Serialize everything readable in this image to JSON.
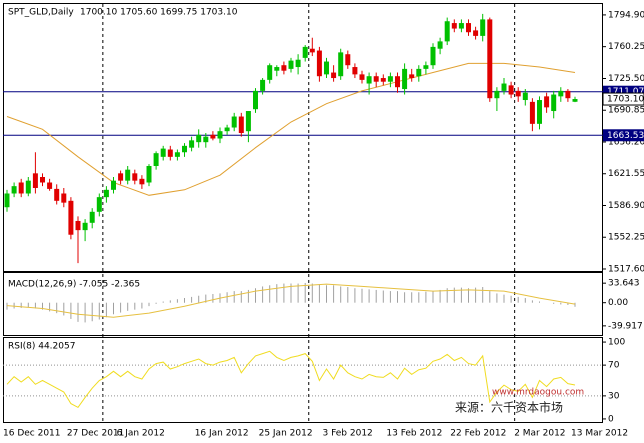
{
  "chart_data": [
    {
      "type": "candlestick",
      "title": "SPT_GLD,Daily",
      "header_ohlc": "1700.10 1705.60 1699.75 1703.10",
      "categories": [
        "16 Dec 2011",
        null,
        null,
        null,
        null,
        null,
        null,
        null,
        null,
        "27 Dec 2011",
        null,
        null,
        null,
        null,
        null,
        null,
        "6 Jan 2012",
        null,
        null,
        null,
        null,
        null,
        null,
        null,
        null,
        null,
        null,
        "16 Jan 2012",
        null,
        null,
        null,
        null,
        null,
        null,
        null,
        null,
        "25 Jan 2012",
        null,
        null,
        null,
        null,
        null,
        null,
        null,
        null,
        "3 Feb 2012",
        null,
        null,
        null,
        null,
        null,
        null,
        null,
        null,
        "13 Feb 2012",
        null,
        null,
        null,
        null,
        null,
        null,
        null,
        null,
        "22 Feb 2012",
        null,
        null,
        null,
        null,
        null,
        null,
        null,
        null,
        "2 Mar 2012",
        null,
        null,
        null,
        null,
        null,
        null,
        null,
        "13 Mar 2012"
      ],
      "candles": [
        [
          1585,
          1604,
          1580,
          1600
        ],
        [
          1600,
          1612,
          1596,
          1608
        ],
        [
          1612,
          1616,
          1596,
          1600
        ],
        [
          1600,
          1618,
          1597,
          1614
        ],
        [
          1622,
          1645,
          1600,
          1606
        ],
        [
          1618,
          1622,
          1608,
          1612
        ],
        [
          1612,
          1616,
          1603,
          1605
        ],
        [
          1605,
          1610,
          1588,
          1592
        ],
        [
          1600,
          1606,
          1585,
          1590
        ],
        [
          1592,
          1596,
          1550,
          1555
        ],
        [
          1570,
          1575,
          1524,
          1560
        ],
        [
          1560,
          1572,
          1548,
          1568
        ],
        [
          1568,
          1584,
          1562,
          1580
        ],
        [
          1580,
          1600,
          1575,
          1596
        ],
        [
          1596,
          1608,
          1590,
          1604
        ],
        [
          1604,
          1618,
          1600,
          1614
        ],
        [
          1622,
          1625,
          1610,
          1614
        ],
        [
          1614,
          1630,
          1610,
          1626
        ],
        [
          1622,
          1626,
          1610,
          1614
        ],
        [
          1616,
          1620,
          1605,
          1610
        ],
        [
          1612,
          1632,
          1608,
          1630
        ],
        [
          1630,
          1646,
          1626,
          1644
        ],
        [
          1640,
          1652,
          1636,
          1649
        ],
        [
          1648,
          1652,
          1636,
          1640
        ],
        [
          1640,
          1648,
          1636,
          1645
        ],
        [
          1645,
          1655,
          1640,
          1652
        ],
        [
          1650,
          1662,
          1646,
          1658
        ],
        [
          1656,
          1670,
          1650,
          1664
        ],
        [
          1656,
          1666,
          1650,
          1662
        ],
        [
          1664,
          1668,
          1658,
          1660
        ],
        [
          1660,
          1672,
          1655,
          1668
        ],
        [
          1668,
          1675,
          1664,
          1672
        ],
        [
          1672,
          1688,
          1668,
          1684
        ],
        [
          1684,
          1688,
          1662,
          1666
        ],
        [
          1668,
          1690,
          1656,
          1690
        ],
        [
          1692,
          1715,
          1688,
          1712
        ],
        [
          1712,
          1726,
          1708,
          1724
        ],
        [
          1724,
          1742,
          1720,
          1740
        ],
        [
          1734,
          1740,
          1728,
          1738
        ],
        [
          1740,
          1744,
          1730,
          1734
        ],
        [
          1736,
          1748,
          1732,
          1745
        ],
        [
          1738,
          1752,
          1730,
          1746
        ],
        [
          1748,
          1762,
          1744,
          1760
        ],
        [
          1758,
          1770,
          1750,
          1754
        ],
        [
          1756,
          1760,
          1722,
          1728
        ],
        [
          1730,
          1748,
          1726,
          1744
        ],
        [
          1732,
          1740,
          1722,
          1726
        ],
        [
          1728,
          1758,
          1724,
          1754
        ],
        [
          1752,
          1756,
          1736,
          1740
        ],
        [
          1738,
          1742,
          1726,
          1730
        ],
        [
          1730,
          1734,
          1720,
          1724
        ],
        [
          1720,
          1732,
          1708,
          1728
        ],
        [
          1728,
          1732,
          1716,
          1722
        ],
        [
          1726,
          1730,
          1718,
          1722
        ],
        [
          1722,
          1732,
          1716,
          1728
        ],
        [
          1728,
          1732,
          1710,
          1716
        ],
        [
          1714,
          1742,
          1708,
          1736
        ],
        [
          1730,
          1736,
          1722,
          1726
        ],
        [
          1728,
          1740,
          1722,
          1736
        ],
        [
          1736,
          1744,
          1730,
          1740
        ],
        [
          1740,
          1764,
          1736,
          1760
        ],
        [
          1758,
          1770,
          1752,
          1766
        ],
        [
          1766,
          1792,
          1762,
          1788
        ],
        [
          1786,
          1790,
          1776,
          1780
        ],
        [
          1780,
          1790,
          1776,
          1786
        ],
        [
          1786,
          1790,
          1772,
          1776
        ],
        [
          1778,
          1782,
          1768,
          1772
        ],
        [
          1772,
          1796,
          1766,
          1790
        ],
        [
          1790,
          1792,
          1700,
          1704
        ],
        [
          1704,
          1716,
          1690,
          1712
        ],
        [
          1712,
          1726,
          1708,
          1720
        ],
        [
          1718,
          1722,
          1704,
          1708
        ],
        [
          1712,
          1716,
          1700,
          1706
        ],
        [
          1702,
          1714,
          1696,
          1710
        ],
        [
          1700,
          1704,
          1668,
          1676
        ],
        [
          1676,
          1706,
          1670,
          1702
        ],
        [
          1706,
          1710,
          1688,
          1694
        ],
        [
          1690,
          1712,
          1682,
          1708
        ],
        [
          1706,
          1716,
          1700,
          1712
        ],
        [
          1712,
          1714,
          1700,
          1704
        ],
        [
          1700.1,
          1705.6,
          1699.75,
          1703.1
        ]
      ],
      "up_color": "#00c000",
      "down_color": "#e00000",
      "ma": {
        "x": [
          0,
          5,
          10,
          15,
          20,
          25,
          30,
          35,
          40,
          45,
          50,
          55,
          60,
          65,
          70,
          75,
          80
        ],
        "values": [
          1684,
          1670,
          1640,
          1612,
          1598,
          1604,
          1620,
          1650,
          1678,
          1698,
          1712,
          1722,
          1732,
          1742,
          1742,
          1738,
          1732
        ],
        "color": "#e0a030"
      },
      "separators": [
        13.5,
        42.5,
        71.5
      ],
      "ylim": [
        1515.4,
        1807.9
      ],
      "yticks": [
        {
          "value": 1517.6,
          "label": "1517.60"
        },
        1552.25,
        {
          "value": 1586.9,
          "label": "1586.90"
        },
        1621.55,
        {
          "value": 1656.2,
          "label": "1656.20"
        },
        1690.85,
        {
          "value": 1725.5,
          "label": "1725.50"
        },
        1760.25,
        {
          "value": 1794.9,
          "label": "1794.90"
        }
      ],
      "levels": [
        1711.07,
        1663.53
      ],
      "level_color": "#000080",
      "last_price": {
        "value": 1703.1,
        "label": "1703.10"
      },
      "grid": false
    },
    {
      "type": "macd",
      "title": "MACD(12,26,9) -7.055 -2.365",
      "values": [
        -12,
        -10,
        -9,
        -8,
        -10,
        -12,
        -15,
        -18,
        -22,
        -28,
        -33,
        -34,
        -32,
        -29,
        -25,
        -20,
        -17,
        -14,
        -12,
        -10,
        -6,
        -2,
        2,
        4,
        6,
        8,
        10,
        12,
        14,
        15,
        16,
        18,
        20,
        20,
        22,
        25,
        28,
        30,
        32,
        33,
        33,
        33,
        34,
        33,
        32,
        30,
        30,
        28,
        27,
        25,
        24,
        23,
        22,
        21,
        20,
        20,
        18,
        18,
        18,
        19,
        20,
        22,
        25,
        26,
        26,
        25,
        26,
        27,
        20,
        16,
        14,
        12,
        10,
        8,
        4,
        2,
        0,
        -2,
        -3,
        -4,
        -7.055
      ],
      "color": "#a0a0a0",
      "signal": {
        "x": [
          0,
          5,
          10,
          15,
          20,
          25,
          30,
          35,
          40,
          45,
          50,
          55,
          60,
          65,
          70,
          75,
          80
        ],
        "values": [
          -5,
          -10,
          -20,
          -25,
          -18,
          -6,
          8,
          20,
          28,
          32,
          28,
          24,
          20,
          22,
          20,
          8,
          -2.365
        ],
        "color": "#e6c040"
      },
      "ylim": [
        -57.4,
        52.9
      ],
      "yticks": [
        -39.917,
        {
          "value": 0,
          "label": "0.00"
        },
        33.643
      ]
    },
    {
      "type": "line",
      "title": "RSI(8) 44.2057",
      "values": [
        45,
        55,
        48,
        55,
        45,
        50,
        45,
        40,
        35,
        20,
        15,
        28,
        40,
        50,
        55,
        62,
        55,
        62,
        55,
        52,
        65,
        72,
        74,
        65,
        68,
        72,
        75,
        78,
        72,
        70,
        74,
        76,
        80,
        60,
        72,
        82,
        85,
        88,
        80,
        76,
        80,
        82,
        85,
        75,
        50,
        65,
        52,
        70,
        60,
        55,
        52,
        58,
        55,
        54,
        60,
        52,
        66,
        58,
        64,
        66,
        75,
        78,
        84,
        76,
        80,
        72,
        70,
        82,
        22,
        35,
        44,
        38,
        36,
        45,
        28,
        50,
        42,
        52,
        54,
        46,
        44.2057
      ],
      "color": "#f0dc20",
      "levels": [
        30,
        70
      ],
      "ylim": [
        -5.3,
        106.6
      ],
      "yticks": [
        0,
        30,
        70,
        100
      ]
    }
  ],
  "watermark": {
    "source": "来源：六千资本市场",
    "url": "www.mrdaogou.com"
  }
}
